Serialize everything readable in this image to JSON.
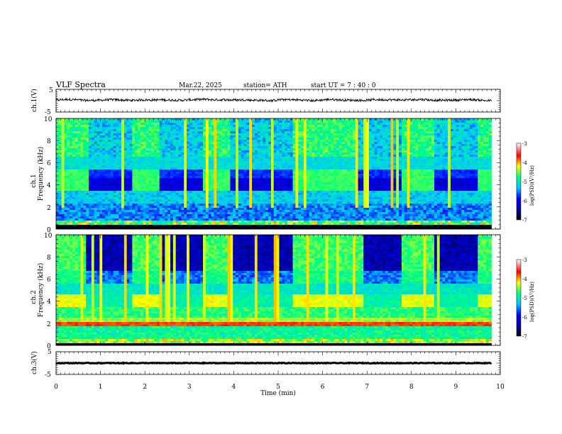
{
  "header": {
    "title": "VLF  Spectra",
    "date": "Mar.22, 2025",
    "station": "station= ATH",
    "start_ut": "start  UT  =    7  : 40 : 0"
  },
  "chart_data": [
    {
      "id": "ch1-waveform",
      "type": "line",
      "ylabel": "ch.1(V)",
      "ytick_labels": [
        "5",
        "-5"
      ],
      "ylim": [
        -5,
        5
      ],
      "xlim": [
        0,
        10
      ],
      "x_end": 9.8,
      "trace_mean": 0.3,
      "trace_amplitude": 1.0,
      "color": "#000000"
    },
    {
      "id": "ch1-spectrogram",
      "type": "heatmap",
      "ylabel_line1": "ch.1",
      "ylabel_line2": "Frequency  (kHz)",
      "ytick_labels": [
        "10",
        "8",
        "6",
        "4",
        "2",
        "0"
      ],
      "ylim": [
        0,
        10
      ],
      "xlim": [
        0,
        10
      ],
      "x_end": 9.8,
      "colorbar": {
        "label": "log(PSD)(V²/Hz)",
        "tick_labels": [
          "-3",
          "-4",
          "-5",
          "-6",
          "-7"
        ],
        "range": [
          -7,
          -3
        ]
      },
      "transmitter_segments": [
        {
          "x0": 0.0,
          "x1": 0.75,
          "band": "upper"
        },
        {
          "x0": 0.75,
          "x1": 1.7,
          "band": "quiet"
        },
        {
          "x0": 1.7,
          "x1": 2.3,
          "band": "upper"
        },
        {
          "x0": 2.3,
          "x1": 3.3,
          "band": "quiet"
        },
        {
          "x0": 3.3,
          "x1": 3.9,
          "band": "upper"
        },
        {
          "x0": 3.9,
          "x1": 5.3,
          "band": "quiet"
        },
        {
          "x0": 5.3,
          "x1": 6.8,
          "band": "upper"
        },
        {
          "x0": 6.8,
          "x1": 7.8,
          "band": "quiet"
        },
        {
          "x0": 7.8,
          "x1": 8.5,
          "band": "upper"
        },
        {
          "x0": 8.5,
          "x1": 9.5,
          "band": "quiet"
        },
        {
          "x0": 9.5,
          "x1": 9.8,
          "band": "upper"
        }
      ]
    },
    {
      "id": "ch2-spectrogram",
      "type": "heatmap",
      "ylabel_line1": "ch.2",
      "ylabel_line2": "Frequency  (kHz)",
      "ytick_labels": [
        "10",
        "8",
        "6",
        "4",
        "2",
        "0"
      ],
      "ylim": [
        0,
        10
      ],
      "xlim": [
        0,
        10
      ],
      "x_end": 9.8,
      "colorbar": {
        "label": "log(PSD)(V²/Hz)",
        "tick_labels": [
          "-3",
          "-4",
          "-5",
          "-6",
          "-7"
        ],
        "range": [
          -7,
          -3
        ]
      },
      "noise_segments": [
        {
          "x0": 0.0,
          "x1": 0.7,
          "level": "high"
        },
        {
          "x0": 0.7,
          "x1": 1.7,
          "level": "low"
        },
        {
          "x0": 1.7,
          "x1": 2.3,
          "level": "high"
        },
        {
          "x0": 2.3,
          "x1": 3.3,
          "level": "low"
        },
        {
          "x0": 3.3,
          "x1": 3.9,
          "level": "high"
        },
        {
          "x0": 3.9,
          "x1": 5.3,
          "level": "low"
        },
        {
          "x0": 5.3,
          "x1": 6.9,
          "level": "high"
        },
        {
          "x0": 6.9,
          "x1": 7.8,
          "level": "low"
        },
        {
          "x0": 7.8,
          "x1": 8.5,
          "level": "high"
        },
        {
          "x0": 8.5,
          "x1": 9.5,
          "level": "low"
        },
        {
          "x0": 9.5,
          "x1": 9.8,
          "level": "high"
        }
      ]
    },
    {
      "id": "ch3-waveform",
      "type": "line",
      "ylabel": "ch.3(V)",
      "ytick_labels": [
        "5",
        "-5"
      ],
      "ylim": [
        -5,
        5
      ],
      "xlim": [
        0,
        10
      ],
      "x_end": 9.8,
      "trace_mean": 0.0,
      "trace_amplitude": 0.15,
      "color": "#000000",
      "xlabel": "Time  (min)",
      "xtick_labels": [
        "0",
        "1",
        "2",
        "3",
        "4",
        "5",
        "6",
        "7",
        "8",
        "9",
        "10"
      ]
    }
  ],
  "colors": {
    "colormap": [
      "#000000",
      "#0000ff",
      "#00c8ff",
      "#00ff80",
      "#ffff00",
      "#ff0000",
      "#ffffff"
    ],
    "trace": "#000000",
    "axes": "#000000"
  }
}
